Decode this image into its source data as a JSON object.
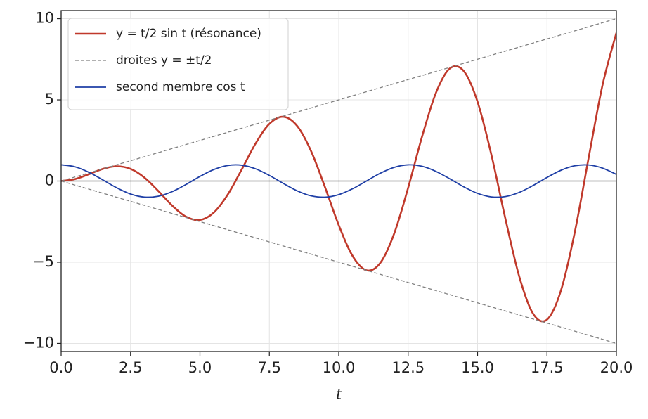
{
  "chart_data": {
    "type": "line",
    "x_label": "t",
    "x": [
      0,
      0.5,
      1,
      1.5,
      2,
      2.5,
      3,
      3.5,
      4,
      4.5,
      5,
      5.5,
      6,
      6.5,
      7,
      7.5,
      8,
      8.5,
      9,
      9.5,
      10,
      10.5,
      11,
      11.5,
      12,
      12.5,
      13,
      13.5,
      14,
      14.5,
      15,
      15.5,
      16,
      16.5,
      17,
      17.5,
      18,
      18.5,
      19,
      19.5,
      20
    ],
    "series": [
      {
        "name": "y = t/2 sin t (résonance)",
        "color": "#c0392b",
        "width": 2.6,
        "dash": false,
        "values": [
          0,
          0.12,
          0.421,
          0.748,
          0.909,
          0.748,
          0.212,
          -0.614,
          -1.514,
          -2.199,
          -2.397,
          -1.94,
          -0.838,
          0.699,
          2.3,
          3.518,
          3.958,
          3.394,
          1.854,
          -0.357,
          -2.72,
          -4.618,
          -5.5,
          -5.034,
          -3.22,
          -0.414,
          2.731,
          5.426,
          6.934,
          6.778,
          4.877,
          1.597,
          -2.303,
          -5.872,
          -8.172,
          -8.537,
          -6.759,
          -3.168,
          1.423,
          5.904,
          9.129
        ]
      },
      {
        "name": "droites y = ±t/2",
        "color": "#808080",
        "width": 1.3,
        "dash": true,
        "values": [
          0,
          0.25,
          0.5,
          0.75,
          1,
          1.25,
          1.5,
          1.75,
          2,
          2.25,
          2.5,
          2.75,
          3,
          3.25,
          3.5,
          3.75,
          4,
          4.25,
          4.5,
          4.75,
          5,
          5.25,
          5.5,
          5.75,
          6,
          6.25,
          6.5,
          6.75,
          7,
          7.25,
          7.5,
          7.75,
          8,
          8.25,
          8.5,
          8.75,
          9,
          9.25,
          9.5,
          9.75,
          10
        ]
      },
      {
        "color": "#808080",
        "width": 1.3,
        "dash": true,
        "values": [
          0,
          -0.25,
          -0.5,
          -0.75,
          -1,
          -1.25,
          -1.5,
          -1.75,
          -2,
          -2.25,
          -2.5,
          -2.75,
          -3,
          -3.25,
          -3.5,
          -3.75,
          -4,
          -4.25,
          -4.5,
          -4.75,
          -5,
          -5.25,
          -5.5,
          -5.75,
          -6,
          -6.25,
          -6.5,
          -6.75,
          -7,
          -7.25,
          -7.5,
          -7.75,
          -8,
          -8.25,
          -8.5,
          -8.75,
          -9,
          -9.25,
          -9.5,
          -9.75,
          -10
        ]
      },
      {
        "name": "second membre cos t",
        "color": "#1f3fa6",
        "width": 1.8,
        "dash": false,
        "values": [
          1,
          0.878,
          0.54,
          0.071,
          -0.416,
          -0.801,
          -0.99,
          -0.937,
          -0.654,
          -0.211,
          0.284,
          0.709,
          0.96,
          0.977,
          0.754,
          0.347,
          -0.146,
          -0.602,
          -0.911,
          -0.997,
          -0.839,
          -0.476,
          0.004,
          0.483,
          0.844,
          0.998,
          0.907,
          0.595,
          0.137,
          -0.355,
          -0.76,
          -0.979,
          -0.958,
          -0.702,
          -0.275,
          0.219,
          0.66,
          0.94,
          0.989,
          0.796,
          0.408
        ]
      }
    ],
    "xlim": [
      0,
      20
    ],
    "xticks": [
      {
        "value": 0,
        "label": "0.0"
      },
      {
        "value": 2.5,
        "label": "2.5"
      },
      {
        "value": 5,
        "label": "5.0"
      },
      {
        "value": 7.5,
        "label": "7.5"
      },
      {
        "value": 10,
        "label": "10.0"
      },
      {
        "value": 12.5,
        "label": "12.5"
      },
      {
        "value": 15,
        "label": "15.0"
      },
      {
        "value": 17.5,
        "label": "17.5"
      },
      {
        "value": 20,
        "label": "20.0"
      }
    ],
    "ylim": [
      -10.5,
      10.5
    ],
    "yticks": [
      {
        "value": -10,
        "label": "−10"
      },
      {
        "value": -5,
        "label": "−5"
      },
      0,
      5,
      10
    ],
    "grid": true,
    "legend": "upper-left"
  }
}
